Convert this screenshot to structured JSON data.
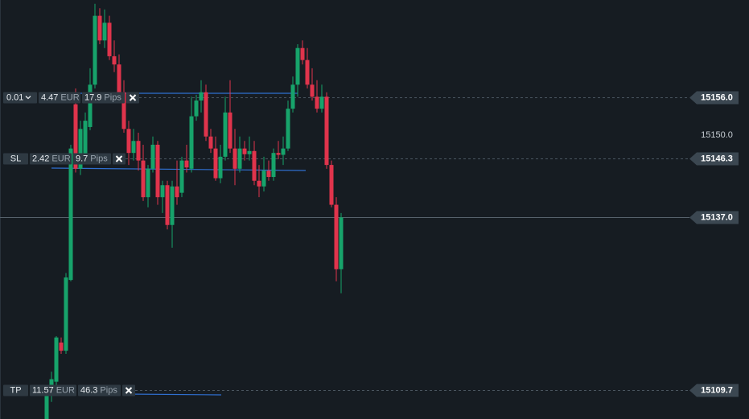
{
  "chart_data": {
    "type": "candlestick",
    "up_color": "#17a36b",
    "down_color": "#e0344c",
    "ylim": [
      15105.1,
      15171.4
    ],
    "yticks": [
      {
        "value": 15150,
        "label": "15150.0"
      }
    ],
    "open": [
      15105.1,
      15109.1,
      15111.0,
      15117.2,
      15115.9,
      15127.1,
      15154.9,
      15144.7,
      15147.0,
      15151.3,
      15158.0,
      15168.9,
      15165.0,
      15167.8,
      15162.5,
      15161.2,
      15156.8,
      15151.0,
      15147.2,
      15149.1,
      15146.0,
      15140.2,
      15144.7,
      15148.5,
      15140.2,
      15142.1,
      15135.8,
      15141.9,
      15140.9,
      15146.0,
      15144.7,
      15153.0,
      15155.5,
      15156.8,
      15149.8,
      15147.9,
      15143.2,
      15146.6,
      15153.6,
      15147.9,
      15144.7,
      15147.9,
      15147.0,
      15147.5,
      15142.8,
      15141.9,
      15144.4,
      15143.4,
      15147.2,
      15146.9,
      15147.9,
      15154.2,
      15158.0,
      15163.8,
      15161.9,
      15158.0,
      15156.1,
      15154.2,
      15156.1,
      15145.3,
      15139.0,
      15128.8
    ],
    "high": [
      15110.3,
      15112.6,
      15118.2,
      15118.0,
      15128.2,
      15148.5,
      15157.4,
      15152.3,
      15153.6,
      15160.6,
      15170.8,
      15170.1,
      15169.9,
      15168.9,
      15165.0,
      15162.8,
      15158.7,
      15152.3,
      15151.0,
      15150.4,
      15148.5,
      15145.3,
      15149.8,
      15149.1,
      15142.8,
      15142.8,
      15142.8,
      15146.0,
      15146.6,
      15148.5,
      15156.1,
      15156.4,
      15158.7,
      15158.0,
      15151.0,
      15149.8,
      15148.5,
      15156.1,
      15158.7,
      15151.0,
      15149.8,
      15149.1,
      15149.8,
      15149.1,
      15145.3,
      15146.6,
      15146.0,
      15147.9,
      15149.1,
      15149.8,
      15155.5,
      15159.3,
      15164.4,
      15165.0,
      15163.8,
      15160.6,
      15158.7,
      15158.0,
      15156.8,
      15146.0,
      15140.2,
      15137.7
    ],
    "low": [
      15105.1,
      15107.8,
      15110.3,
      15115.4,
      15115.4,
      15126.9,
      15144.1,
      15143.7,
      15146.6,
      15150.8,
      15157.4,
      15164.4,
      15163.8,
      15161.9,
      15160.0,
      15155.9,
      15150.4,
      15145.3,
      15146.0,
      15144.4,
      15139.6,
      15138.6,
      15144.1,
      15139.0,
      15137.7,
      15135.1,
      15132.2,
      15139.0,
      15140.2,
      15144.1,
      15144.1,
      15152.3,
      15153.6,
      15149.1,
      15147.2,
      15142.8,
      15142.4,
      15146.0,
      15147.2,
      15142.1,
      15144.1,
      15146.0,
      15146.0,
      15142.1,
      15140.2,
      15141.1,
      15142.8,
      15142.8,
      15146.2,
      15145.3,
      15147.5,
      15153.6,
      15156.1,
      15161.2,
      15157.4,
      15155.5,
      15153.6,
      15153.6,
      15144.7,
      15138.6,
      15126.9,
      15125.0
    ],
    "close": [
      15109.1,
      15111.4,
      15118.0,
      15115.9,
      15127.5,
      15147.9,
      15144.7,
      15151.0,
      15152.3,
      15158.0,
      15168.9,
      15165.0,
      15167.8,
      15162.5,
      15161.2,
      15156.8,
      15151.0,
      15147.2,
      15149.1,
      15146.0,
      15140.2,
      15144.7,
      15148.5,
      15140.2,
      15142.1,
      15135.8,
      15141.9,
      15140.2,
      15146.0,
      15144.9,
      15153.0,
      15155.5,
      15156.8,
      15149.8,
      15147.9,
      15143.2,
      15146.6,
      15153.6,
      15147.9,
      15144.7,
      15147.9,
      15147.0,
      15147.5,
      15142.8,
      15141.9,
      15144.4,
      15143.4,
      15147.2,
      15146.9,
      15147.9,
      15154.2,
      15158.0,
      15163.8,
      15161.9,
      15158.0,
      15156.1,
      15154.2,
      15156.1,
      15145.3,
      15139.0,
      15128.8,
      15137.0
    ],
    "price_lines": [
      {
        "value": 15156.0,
        "label": "15156.0",
        "order": {
          "name": "0.01",
          "amount": "4.47",
          "currency": "EUR",
          "distance": "17.9",
          "unit": "Pips"
        }
      },
      {
        "value": 15146.3,
        "label": "15146.3",
        "order": {
          "name": "SL",
          "amount": "2.42",
          "currency": "EUR",
          "distance": "9.7",
          "unit": "Pips"
        }
      },
      {
        "value": 15137.0,
        "label": "15137.0"
      },
      {
        "value": 15109.7,
        "label": "15109.7",
        "order": {
          "name": "TP",
          "amount": "11.57",
          "currency": "EUR",
          "distance": "46.3",
          "unit": "Pips"
        }
      }
    ]
  }
}
